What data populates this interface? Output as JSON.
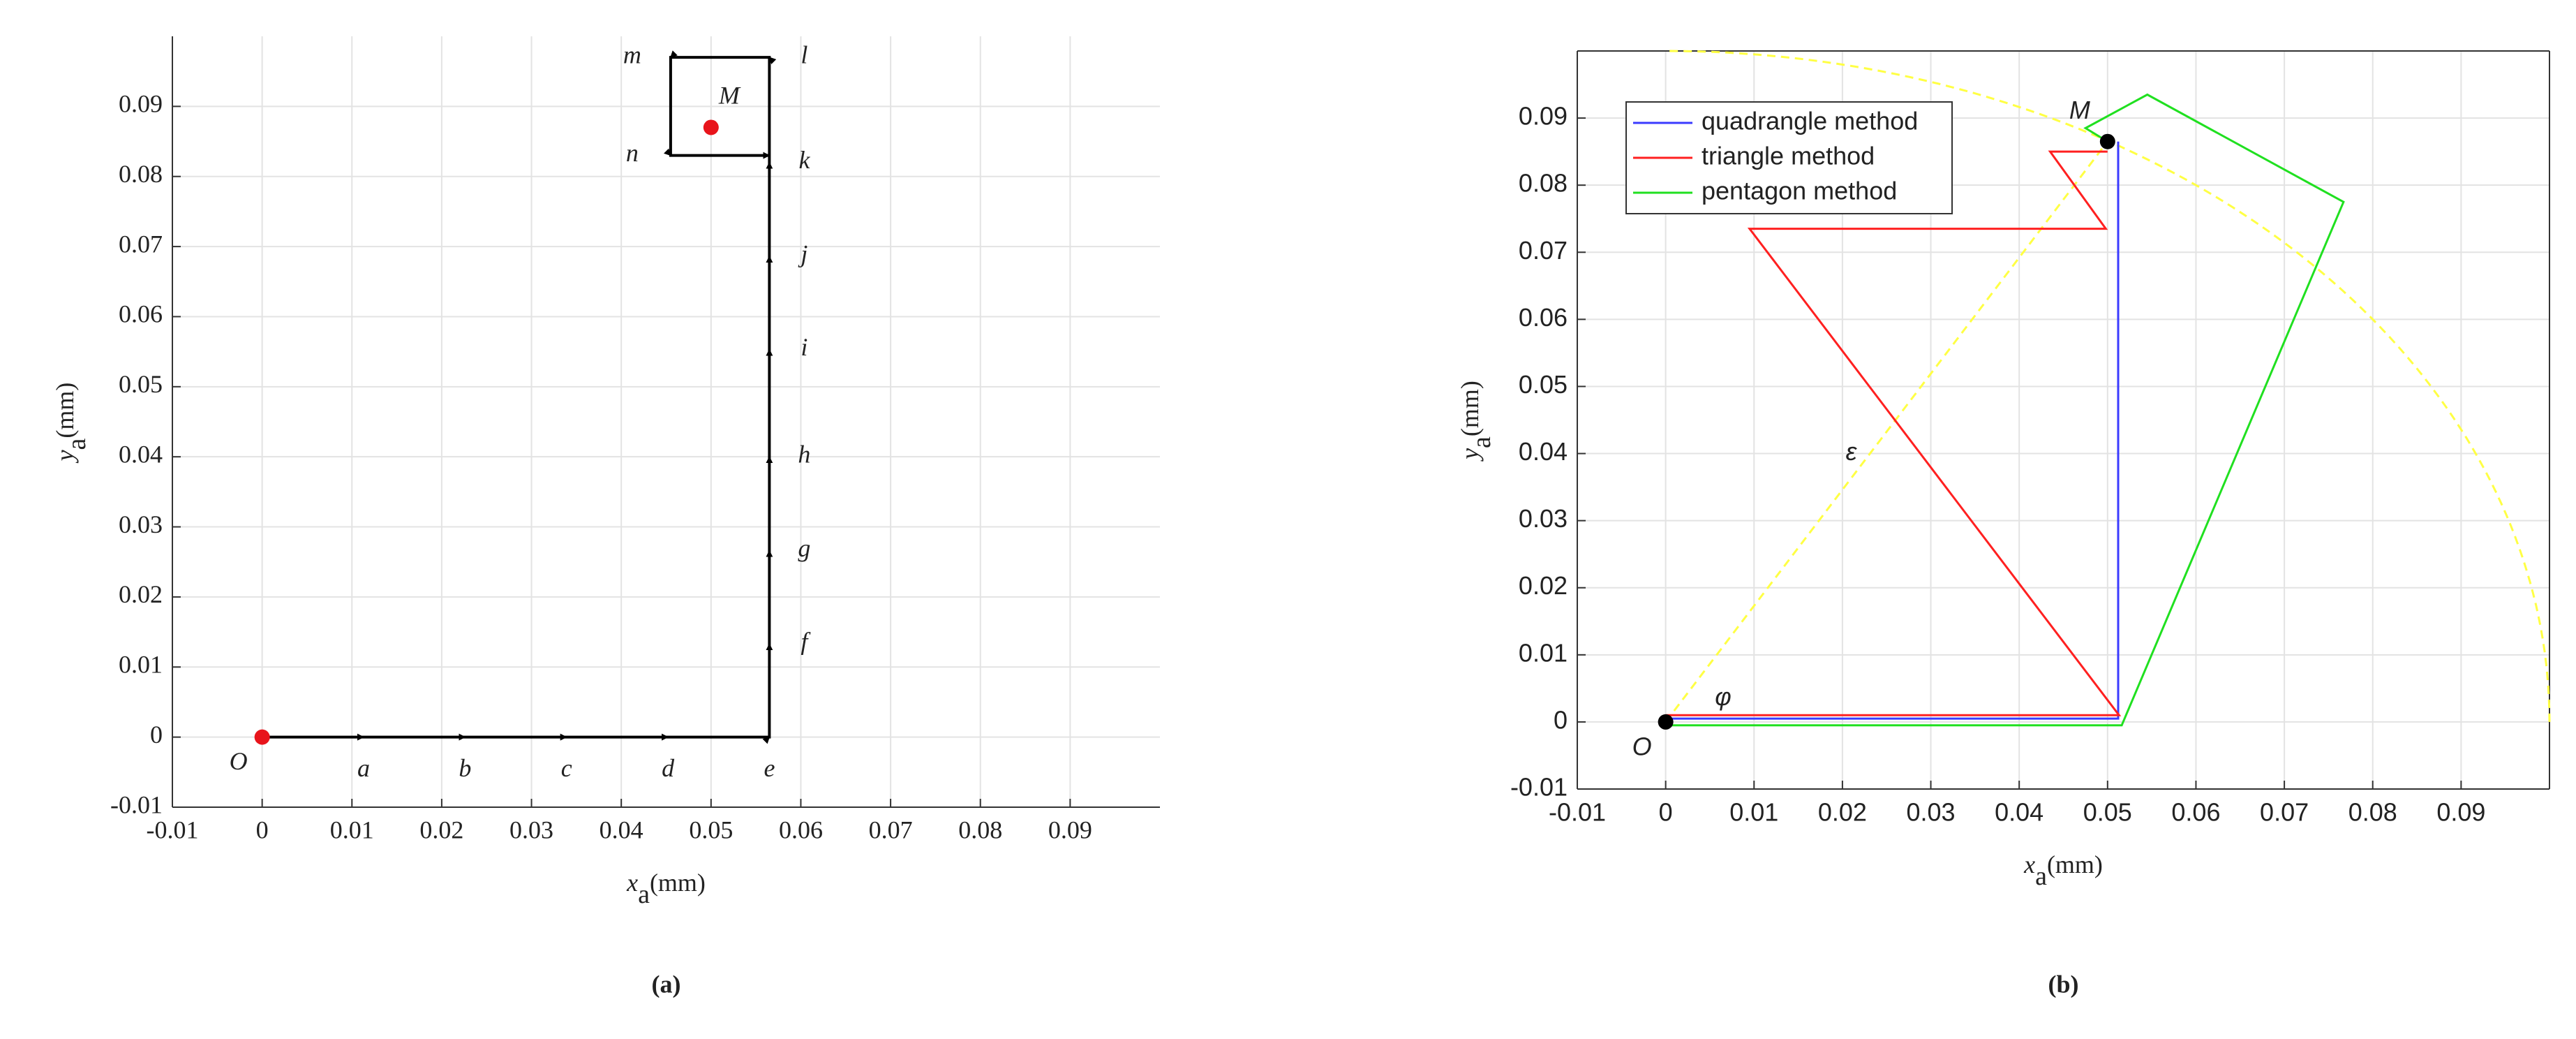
{
  "chart_data": [
    {
      "type": "path",
      "subtitle": "(a)",
      "xlabel": {
        "main": "x",
        "sub": "a",
        "unit": "(mm)"
      },
      "ylabel": {
        "main": "y",
        "sub": "a",
        "unit": "(mm)"
      },
      "xlim": [
        -0.01,
        0.1
      ],
      "ylim": [
        -0.01,
        0.1
      ],
      "xticks": [
        -0.01,
        0,
        0.01,
        0.02,
        0.03,
        0.04,
        0.05,
        0.06,
        0.07,
        0.08,
        0.09
      ],
      "yticks": [
        -0.01,
        0,
        0.01,
        0.02,
        0.03,
        0.04,
        0.05,
        0.06,
        0.07,
        0.08,
        0.09
      ],
      "grid": true,
      "box": false,
      "font": "serif",
      "series": [
        {
          "color": "#000000",
          "arrows": true,
          "x": [
            0,
            0.0113,
            0.0226,
            0.0339,
            0.0452,
            0.0565,
            0.0565,
            0.0565,
            0.0565,
            0.0565,
            0.0565,
            0.0565,
            0.0565,
            0.0455,
            0.0455,
            0.0565
          ],
          "values": [
            0,
            0,
            0,
            0,
            0,
            0,
            0.0133,
            0.0266,
            0.04,
            0.0553,
            0.0686,
            0.082,
            0.097,
            0.097,
            0.083,
            0.083
          ],
          "point_labels": [
            null,
            "a",
            "b",
            "c",
            "d",
            "e",
            "f",
            "g",
            "h",
            "i",
            "j",
            "k",
            "l",
            "m",
            "n",
            null
          ]
        }
      ],
      "markers": [
        {
          "label": "O",
          "x": 0,
          "y": 0,
          "color": "#e8141b"
        },
        {
          "label": "M",
          "x": 0.05,
          "y": 0.087,
          "color": "#e8141b"
        }
      ]
    },
    {
      "type": "line",
      "subtitle": "(b)",
      "xlabel": {
        "main": "x",
        "sub": "a",
        "unit": "(mm)"
      },
      "ylabel": {
        "main": "y",
        "sub": "a",
        "unit": "(mm)"
      },
      "xlim": [
        -0.01,
        0.1
      ],
      "ylim": [
        -0.01,
        0.1
      ],
      "xticks": [
        -0.01,
        0,
        0.01,
        0.02,
        0.03,
        0.04,
        0.05,
        0.06,
        0.07,
        0.08,
        0.09
      ],
      "yticks": [
        -0.01,
        0,
        0.01,
        0.02,
        0.03,
        0.04,
        0.05,
        0.06,
        0.07,
        0.08,
        0.09
      ],
      "grid": true,
      "box": true,
      "font": "sans",
      "legend": "upper left",
      "arc": {
        "radius": 0.1,
        "color": "#ffff44"
      },
      "series": [
        {
          "color": "#ffff44",
          "dashed": true,
          "x": [
            0,
            0.05
          ],
          "values": [
            0,
            0.0865
          ]
        },
        {
          "name": "quadrangle method",
          "color": "#3b3bff",
          "x": [
            0,
            0.0512,
            0.0512
          ],
          "values": [
            0.0005,
            0.0005,
            0.0865
          ]
        },
        {
          "name": "triangle method",
          "color": "#ff2020",
          "x": [
            0,
            0.0513,
            0.0095,
            0.0498,
            0.0435,
            0.05
          ],
          "values": [
            0.001,
            0.001,
            0.0735,
            0.0735,
            0.085,
            0.085
          ]
        },
        {
          "name": "pentagon method",
          "color": "#20e020",
          "x": [
            0,
            0.0516,
            0.0767,
            0.0545,
            0.0475,
            0.05
          ],
          "values": [
            -0.0005,
            -0.0005,
            0.0775,
            0.0935,
            0.0885,
            0.0865
          ]
        }
      ],
      "markers": [
        {
          "label": "O",
          "x": 0,
          "y": 0,
          "color": "#000000"
        },
        {
          "label": "M",
          "x": 0.05,
          "y": 0.0865,
          "color": "#000000"
        }
      ],
      "annotations": [
        {
          "text": "ε",
          "x": 0.021,
          "y": 0.04
        },
        {
          "text": "φ",
          "x": 0.0065,
          "y": 0.0035
        }
      ]
    }
  ]
}
